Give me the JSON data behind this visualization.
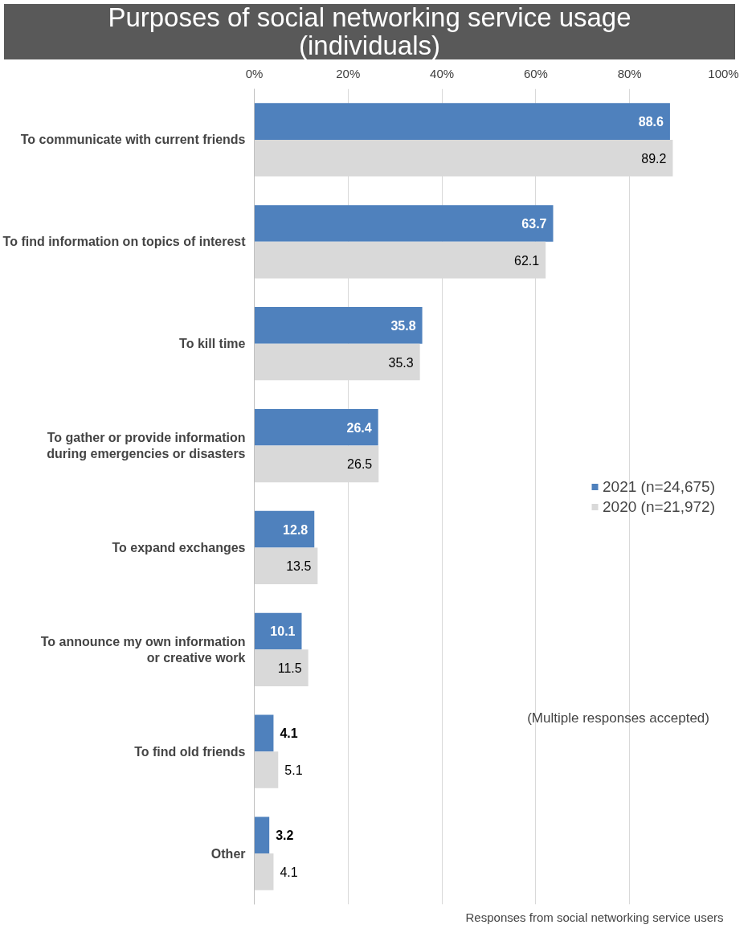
{
  "chart_data": {
    "type": "bar",
    "orientation": "horizontal",
    "title": "Purposes of social networking service usage\n(individuals)",
    "categories": [
      "To communicate with current friends",
      "To find information on topics of interest",
      "To kill time",
      "To gather or provide information\nduring emergencies or disasters",
      "To expand exchanges",
      "To announce my own information\nor creative work",
      "To find old friends",
      "Other"
    ],
    "series": [
      {
        "name": "2021 (n=24,675)",
        "color": "#4f81bd",
        "values": [
          88.6,
          63.7,
          35.8,
          26.4,
          12.8,
          10.1,
          4.1,
          3.2
        ]
      },
      {
        "name": "2020 (n=21,972)",
        "color": "#d9d9d9",
        "values": [
          89.2,
          62.1,
          35.3,
          26.5,
          13.5,
          11.5,
          5.1,
          4.1
        ]
      }
    ],
    "xlim": [
      0,
      100
    ],
    "xticks": [
      {
        "value": 0,
        "label": "0%"
      },
      {
        "value": 20,
        "label": "20%"
      },
      {
        "value": 40,
        "label": "40%"
      },
      {
        "value": 60,
        "label": "60%"
      },
      {
        "value": 80,
        "label": "80%"
      },
      {
        "value": 100,
        "label": "100%"
      }
    ],
    "grid": "x",
    "legend": "right",
    "data_labels": true,
    "annotations": [
      "(Multiple responses accepted)",
      "Responses from social networking service users"
    ]
  }
}
